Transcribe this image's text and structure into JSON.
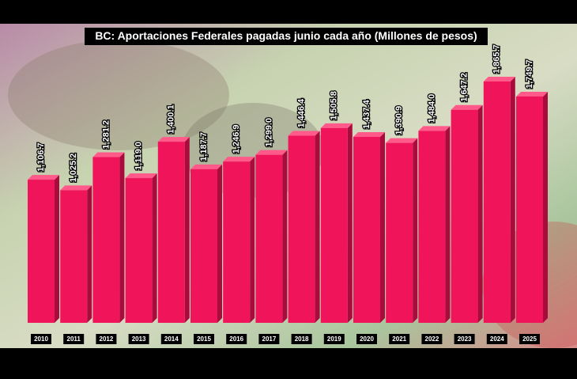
{
  "chart_data": {
    "type": "bar",
    "title": "BC: Aportaciones Federales pagadas junio cada año (Millones de pesos)",
    "categories": [
      "2010",
      "2011",
      "2012",
      "2013",
      "2014",
      "2015",
      "2016",
      "2017",
      "2018",
      "2019",
      "2020",
      "2021",
      "2022",
      "2023",
      "2024",
      "2025"
    ],
    "values": [
      1106.7,
      1025.2,
      1281.2,
      1119.0,
      1400.1,
      1187.7,
      1246.9,
      1299.0,
      1446.4,
      1505.8,
      1437.4,
      1390.9,
      1484.0,
      1647.2,
      1865.7,
      1749.7
    ],
    "value_labels": [
      "1,106.7",
      "1,025.2",
      "1,281.2",
      "1,119.0",
      "1,400.1",
      "1,187.7",
      "1,246.9",
      "1,299.0",
      "1,446.4",
      "1,505.8",
      "1,437.4",
      "1,390.9",
      "1,484.0",
      "1,647.2",
      "1,865.7",
      "1,749.7"
    ],
    "color": "#f0145a"
  }
}
